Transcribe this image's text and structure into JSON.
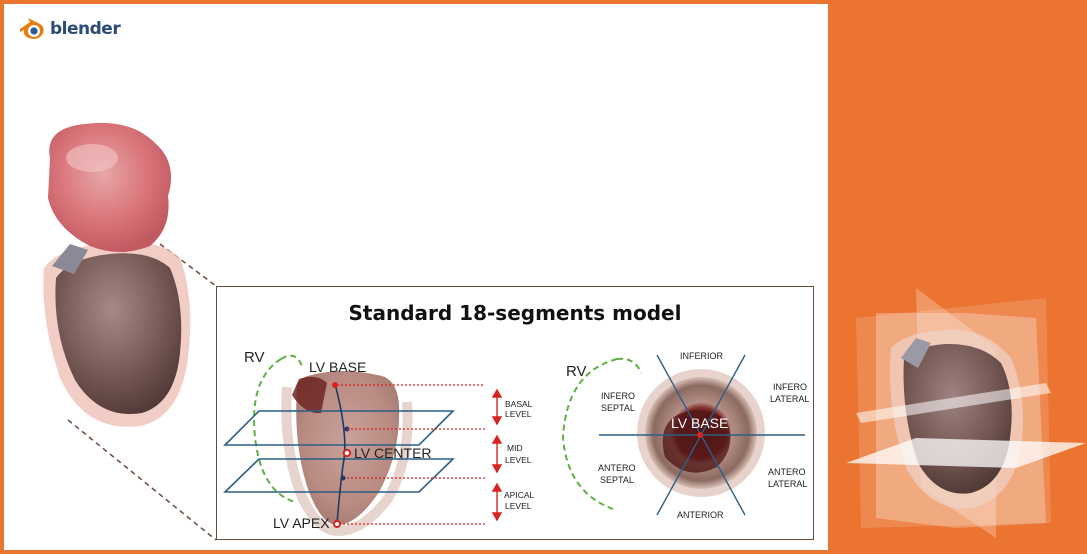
{
  "logo": {
    "text": "blender",
    "icon": "blender-logo-icon"
  },
  "inset": {
    "title": "Standard 18-segments model",
    "left_diagram": {
      "rv_label": "RV",
      "lv_base_label": "LV BASE",
      "lv_center_label": "LV CENTER",
      "lv_apex_label": "LV APEX",
      "levels": [
        {
          "line1": "BASAL",
          "line2": "LEVEL"
        },
        {
          "line1": "MID",
          "line2": "LEVEL"
        },
        {
          "line1": "APICAL",
          "line2": "LEVEL"
        }
      ]
    },
    "right_diagram": {
      "rv_label": "RV",
      "lv_base_label": "LV BASE",
      "segments": {
        "inferior": "INFERIOR",
        "infero_lateral": [
          "INFERO",
          "LATERAL"
        ],
        "antero_lateral": [
          "ANTERO",
          "LATERAL"
        ],
        "anterior": "ANTERIOR",
        "antero_septal": [
          "ANTERO",
          "SEPTAL"
        ],
        "infero_septal": [
          "INFERO",
          "SEPTAL"
        ]
      }
    }
  },
  "colors": {
    "accent_orange": "#eb7431",
    "rv_dashed": "#5db043",
    "plane_blue": "#2d5f86",
    "level_red": "#d8231f",
    "heart_tissue": "#c7a097"
  }
}
